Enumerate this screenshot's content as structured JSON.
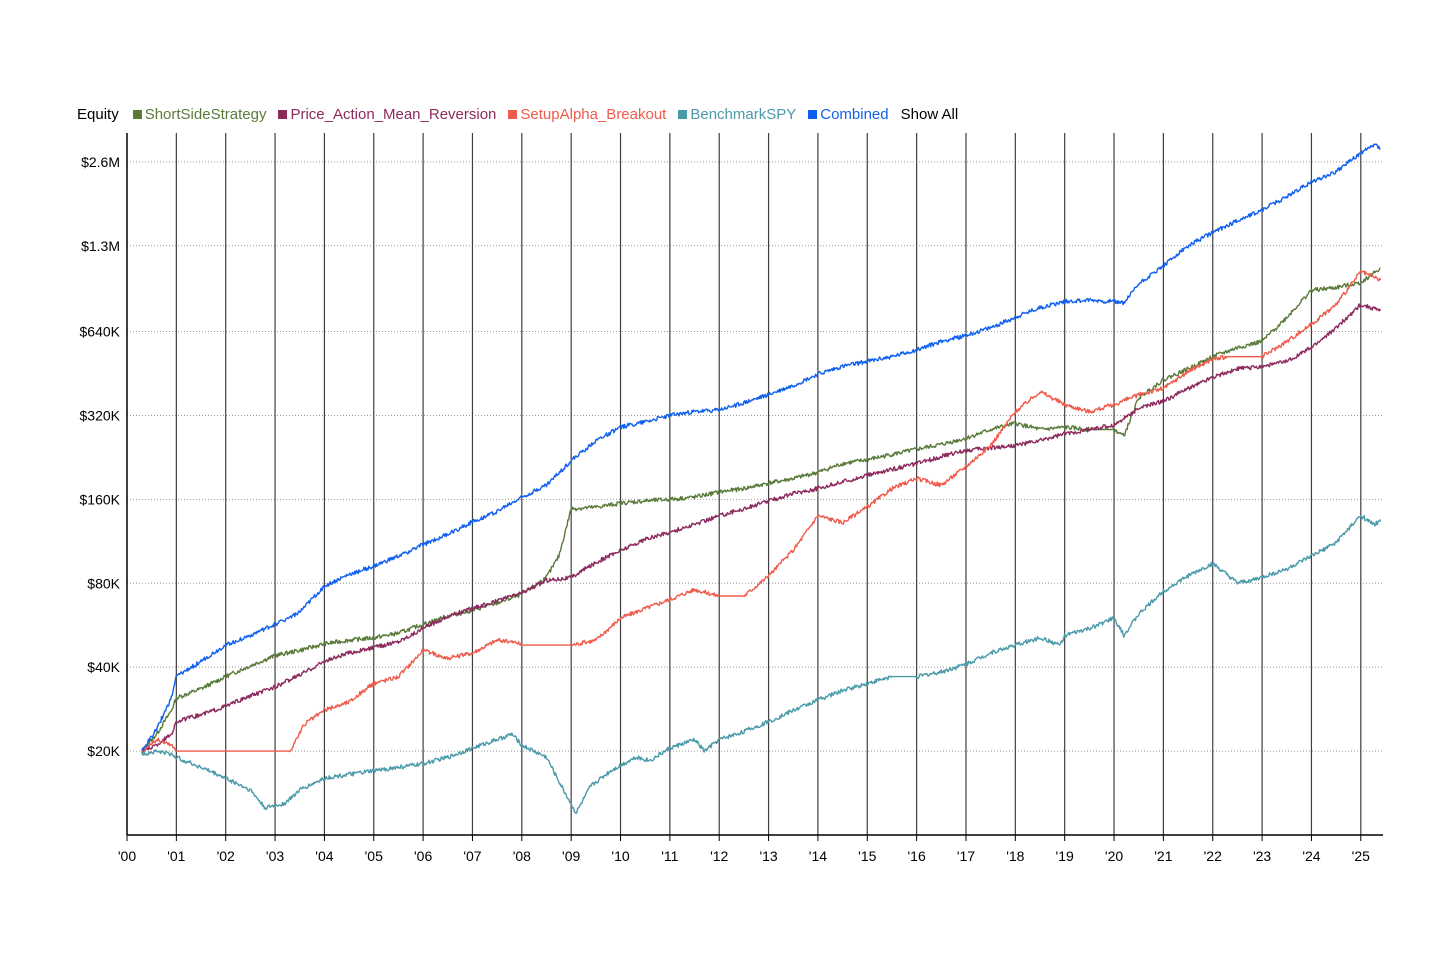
{
  "legend": {
    "title": "Equity",
    "show_all": "Show All"
  },
  "chart_data": {
    "type": "line",
    "yscale": "log",
    "ylim": [
      10000,
      3300000
    ],
    "xlim": [
      2000.0,
      2025.45
    ],
    "y_ticks": [
      {
        "value": 20000,
        "label": "$20K"
      },
      {
        "value": 40000,
        "label": "$40K"
      },
      {
        "value": 80000,
        "label": "$80K"
      },
      {
        "value": 160000,
        "label": "$160K"
      },
      {
        "value": 320000,
        "label": "$320K"
      },
      {
        "value": 640000,
        "label": "$640K"
      },
      {
        "value": 1300000,
        "label": "$1.3M"
      },
      {
        "value": 2600000,
        "label": "$2.6M"
      }
    ],
    "x_ticks": [
      {
        "value": 2000,
        "label": "'00"
      },
      {
        "value": 2001,
        "label": "'01"
      },
      {
        "value": 2002,
        "label": "'02"
      },
      {
        "value": 2003,
        "label": "'03"
      },
      {
        "value": 2004,
        "label": "'04"
      },
      {
        "value": 2005,
        "label": "'05"
      },
      {
        "value": 2006,
        "label": "'06"
      },
      {
        "value": 2007,
        "label": "'07"
      },
      {
        "value": 2008,
        "label": "'08"
      },
      {
        "value": 2009,
        "label": "'09"
      },
      {
        "value": 2010,
        "label": "'10"
      },
      {
        "value": 2011,
        "label": "'11"
      },
      {
        "value": 2012,
        "label": "'12"
      },
      {
        "value": 2013,
        "label": "'13"
      },
      {
        "value": 2014,
        "label": "'14"
      },
      {
        "value": 2015,
        "label": "'15"
      },
      {
        "value": 2016,
        "label": "'16"
      },
      {
        "value": 2017,
        "label": "'17"
      },
      {
        "value": 2018,
        "label": "'18"
      },
      {
        "value": 2019,
        "label": "'19"
      },
      {
        "value": 2020,
        "label": "'20"
      },
      {
        "value": 2021,
        "label": "'21"
      },
      {
        "value": 2022,
        "label": "'22"
      },
      {
        "value": 2023,
        "label": "'23"
      },
      {
        "value": 2024,
        "label": "'24"
      },
      {
        "value": 2025,
        "label": "'25"
      }
    ],
    "grid": {
      "vertical": "solid",
      "horizontal": "dotted"
    },
    "legend_position": "top-left",
    "series": [
      {
        "name": "ShortSideStrategy",
        "color": "#5a7a3a",
        "x": [
          2000.3,
          2000.6,
          2000.9,
          2001.0,
          2001.5,
          2002.0,
          2002.5,
          2003.0,
          2003.5,
          2004.0,
          2004.5,
          2005.0,
          2005.5,
          2006.0,
          2006.5,
          2007.0,
          2007.5,
          2008.0,
          2008.5,
          2008.75,
          2009.0,
          2009.5,
          2010.0,
          2010.5,
          2011.0,
          2011.5,
          2012.0,
          2012.5,
          2013.0,
          2013.5,
          2014.0,
          2014.5,
          2015.0,
          2015.5,
          2016.0,
          2016.5,
          2017.0,
          2017.5,
          2018.0,
          2018.5,
          2019.0,
          2019.5,
          2020.0,
          2020.2,
          2020.5,
          2021.0,
          2021.5,
          2022.0,
          2022.5,
          2023.0,
          2023.5,
          2024.0,
          2024.5,
          2025.0,
          2025.4
        ],
        "y": [
          20000,
          23000,
          28000,
          31000,
          33500,
          37000,
          40500,
          44000,
          46000,
          48500,
          50000,
          51000,
          53000,
          57000,
          61000,
          64000,
          68000,
          73000,
          84000,
          100000,
          148000,
          150000,
          155000,
          158000,
          160000,
          163000,
          170000,
          175000,
          183000,
          190000,
          200000,
          215000,
          222000,
          232000,
          242000,
          252000,
          265000,
          285000,
          300000,
          285000,
          290000,
          285000,
          285000,
          270000,
          370000,
          430000,
          470000,
          520000,
          560000,
          590000,
          720000,
          900000,
          920000,
          960000,
          1080000
        ]
      },
      {
        "name": "Price_Action_Mean_Reversion",
        "color": "#8c2a5e",
        "x": [
          2000.3,
          2000.6,
          2000.9,
          2001.0,
          2001.5,
          2002.0,
          2002.5,
          2003.0,
          2003.5,
          2004.0,
          2004.5,
          2005.0,
          2005.5,
          2006.0,
          2006.5,
          2007.0,
          2007.5,
          2008.0,
          2008.5,
          2009.0,
          2009.5,
          2010.0,
          2010.5,
          2011.0,
          2011.5,
          2012.0,
          2012.5,
          2013.0,
          2013.5,
          2014.0,
          2014.5,
          2015.0,
          2015.5,
          2016.0,
          2016.5,
          2017.0,
          2017.5,
          2018.0,
          2018.5,
          2019.0,
          2019.5,
          2020.0,
          2020.5,
          2021.0,
          2021.5,
          2022.0,
          2022.5,
          2023.0,
          2023.5,
          2024.0,
          2024.5,
          2025.0,
          2025.4
        ],
        "y": [
          20000,
          21000,
          23000,
          25500,
          27000,
          29000,
          31500,
          34000,
          37500,
          42000,
          45000,
          47000,
          49500,
          55000,
          61000,
          65000,
          69000,
          74000,
          82000,
          84000,
          95000,
          105000,
          115000,
          122000,
          130000,
          140000,
          148000,
          158000,
          168000,
          175000,
          185000,
          195000,
          205000,
          215000,
          228000,
          240000,
          245000,
          250000,
          260000,
          275000,
          285000,
          295000,
          340000,
          360000,
          400000,
          440000,
          470000,
          480000,
          500000,
          560000,
          660000,
          800000,
          760000
        ]
      },
      {
        "name": "SetupAlpha_Breakout",
        "color": "#f05a4a",
        "x": [
          2000.3,
          2000.6,
          2000.9,
          2001.0,
          2002.0,
          2003.0,
          2003.3,
          2003.6,
          2004.0,
          2004.5,
          2005.0,
          2005.5,
          2006.0,
          2006.5,
          2007.0,
          2007.5,
          2007.9,
          2008.0,
          2009.0,
          2009.5,
          2010.0,
          2010.5,
          2011.0,
          2011.5,
          2012.0,
          2012.5,
          2013.0,
          2013.5,
          2014.0,
          2014.5,
          2015.0,
          2015.5,
          2016.0,
          2016.5,
          2017.0,
          2017.5,
          2018.0,
          2018.5,
          2019.0,
          2019.5,
          2020.0,
          2020.5,
          2021.0,
          2021.5,
          2022.0,
          2022.3,
          2023.0,
          2023.5,
          2024.0,
          2024.5,
          2025.0,
          2025.4
        ],
        "y": [
          20000,
          22000,
          21000,
          20000,
          20000,
          20000,
          20000,
          25000,
          28000,
          30000,
          35000,
          37000,
          46000,
          43000,
          45000,
          50000,
          49000,
          48000,
          48000,
          50000,
          60000,
          65000,
          70000,
          76000,
          72000,
          72000,
          85000,
          105000,
          140000,
          132000,
          150000,
          175000,
          190000,
          180000,
          210000,
          250000,
          330000,
          390000,
          350000,
          330000,
          350000,
          380000,
          400000,
          460000,
          510000,
          520000,
          520000,
          590000,
          680000,
          800000,
          1050000,
          980000
        ]
      },
      {
        "name": "BenchmarkSPY",
        "color": "#4a9aaa",
        "x": [
          2000.3,
          2000.6,
          2000.9,
          2001.0,
          2001.5,
          2002.0,
          2002.5,
          2002.8,
          2003.2,
          2003.5,
          2004.0,
          2004.5,
          2005.0,
          2005.5,
          2006.0,
          2006.5,
          2007.0,
          2007.5,
          2007.8,
          2008.0,
          2008.5,
          2008.8,
          2009.1,
          2009.4,
          2009.8,
          2010.3,
          2010.6,
          2011.0,
          2011.5,
          2011.7,
          2012.0,
          2012.5,
          2013.0,
          2013.5,
          2014.0,
          2014.5,
          2015.0,
          2015.5,
          2016.0,
          2016.5,
          2017.0,
          2017.5,
          2018.0,
          2018.5,
          2018.9,
          2019.0,
          2019.5,
          2020.0,
          2020.2,
          2020.5,
          2021.0,
          2021.5,
          2022.0,
          2022.5,
          2022.8,
          2023.0,
          2023.5,
          2024.0,
          2024.5,
          2025.0,
          2025.25,
          2025.4
        ],
        "y": [
          19500,
          20000,
          19500,
          19000,
          17500,
          16000,
          14500,
          12500,
          13000,
          14500,
          16000,
          16500,
          17000,
          17500,
          18000,
          19000,
          20500,
          22000,
          23000,
          21000,
          19000,
          15000,
          12000,
          15000,
          17000,
          19000,
          18500,
          20500,
          22000,
          20000,
          22000,
          23500,
          25500,
          28000,
          30500,
          33000,
          35000,
          37000,
          37000,
          38500,
          41000,
          45000,
          48000,
          51000,
          48000,
          52000,
          55000,
          60000,
          52000,
          62000,
          75000,
          85000,
          94000,
          80000,
          82000,
          84000,
          90000,
          100000,
          112000,
          140000,
          130000,
          133000
        ]
      },
      {
        "name": "Combined",
        "color": "#1060f0",
        "x": [
          2000.3,
          2000.6,
          2000.9,
          2001.0,
          2001.5,
          2002.0,
          2002.5,
          2003.0,
          2003.5,
          2004.0,
          2004.5,
          2005.0,
          2005.5,
          2006.0,
          2006.5,
          2007.0,
          2007.5,
          2008.0,
          2008.5,
          2009.0,
          2009.5,
          2010.0,
          2010.5,
          2011.0,
          2011.5,
          2012.0,
          2012.5,
          2013.0,
          2013.5,
          2014.0,
          2014.5,
          2015.0,
          2015.5,
          2016.0,
          2016.5,
          2017.0,
          2017.5,
          2018.0,
          2018.5,
          2019.0,
          2019.5,
          2020.0,
          2020.2,
          2020.5,
          2021.0,
          2021.5,
          2022.0,
          2022.5,
          2023.0,
          2023.5,
          2024.0,
          2024.5,
          2025.0,
          2025.3,
          2025.4
        ],
        "y": [
          20000,
          24000,
          31000,
          37000,
          42000,
          48000,
          52000,
          57000,
          63000,
          78000,
          86000,
          92000,
          100000,
          110000,
          120000,
          133000,
          145000,
          163000,
          180000,
          220000,
          260000,
          290000,
          305000,
          320000,
          330000,
          335000,
          355000,
          380000,
          410000,
          450000,
          480000,
          500000,
          520000,
          550000,
          590000,
          620000,
          660000,
          720000,
          780000,
          820000,
          830000,
          820000,
          810000,
          950000,
          1100000,
          1300000,
          1450000,
          1600000,
          1750000,
          1950000,
          2200000,
          2400000,
          2800000,
          3000000,
          2900000
        ]
      }
    ]
  }
}
